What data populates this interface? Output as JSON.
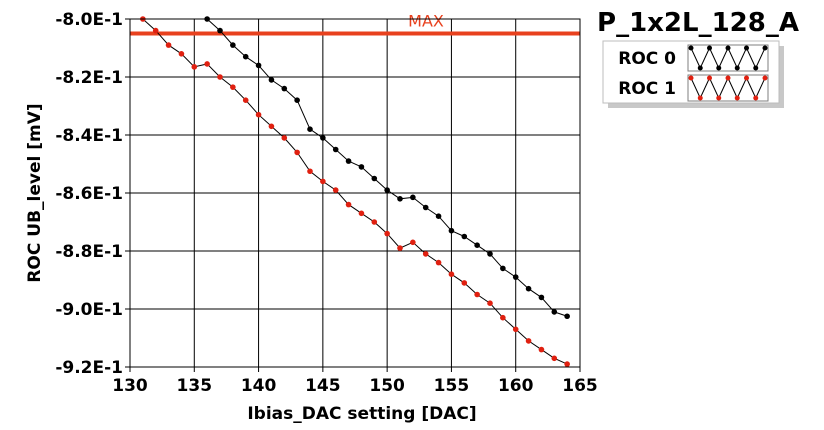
{
  "chart_data": {
    "type": "line",
    "title": "P_1x2L_128_A",
    "xlabel": "Ibias_DAC setting [DAC]",
    "ylabel": "ROC UB_level [mV]",
    "xlim": [
      130,
      165
    ],
    "ylim": [
      -0.92,
      -0.8
    ],
    "x_ticks": [
      130,
      135,
      140,
      145,
      150,
      155,
      160,
      165
    ],
    "x_tick_labels": [
      "130",
      "135",
      "140",
      "145",
      "150",
      "155",
      "160",
      "165"
    ],
    "y_ticks": [
      -0.8,
      -0.82,
      -0.84,
      -0.86,
      -0.88,
      -0.9,
      -0.92
    ],
    "y_tick_labels": [
      "-8.0E-1",
      "-8.2E-1",
      "-8.4E-1",
      "-8.6E-1",
      "-8.8E-1",
      "-9.0E-1",
      "-9.2E-1"
    ],
    "grid": true,
    "legend_position": "top-right",
    "reference_line": {
      "label": "MAX",
      "y": -0.805,
      "color": "#e8411e"
    },
    "series": [
      {
        "name": "ROC 0",
        "color": "#000000",
        "x": [
          136,
          137,
          138,
          139,
          140,
          141,
          142,
          143,
          144,
          145,
          146,
          147,
          148,
          149,
          150,
          151,
          152,
          153,
          154,
          155,
          156,
          157,
          158,
          159,
          160,
          161,
          162,
          163,
          164
        ],
        "y": [
          -0.8,
          -0.804,
          -0.809,
          -0.813,
          -0.816,
          -0.821,
          -0.824,
          -0.828,
          -0.838,
          -0.841,
          -0.845,
          -0.849,
          -0.851,
          -0.855,
          -0.859,
          -0.862,
          -0.8615,
          -0.865,
          -0.868,
          -0.873,
          -0.875,
          -0.878,
          -0.881,
          -0.886,
          -0.889,
          -0.893,
          -0.896,
          -0.901,
          -0.9025
        ]
      },
      {
        "name": "ROC 1",
        "color": "#e02010",
        "x": [
          131,
          132,
          133,
          134,
          135,
          136,
          137,
          138,
          139,
          140,
          141,
          142,
          143,
          144,
          145,
          146,
          147,
          148,
          149,
          150,
          151,
          152,
          153,
          154,
          155,
          156,
          157,
          158,
          159,
          160,
          161,
          162,
          163,
          164
        ],
        "y": [
          -0.8,
          -0.804,
          -0.809,
          -0.812,
          -0.8165,
          -0.8155,
          -0.82,
          -0.8235,
          -0.828,
          -0.833,
          -0.837,
          -0.841,
          -0.846,
          -0.8525,
          -0.856,
          -0.859,
          -0.864,
          -0.867,
          -0.87,
          -0.874,
          -0.879,
          -0.877,
          -0.881,
          -0.884,
          -0.888,
          -0.891,
          -0.895,
          -0.898,
          -0.903,
          -0.907,
          -0.911,
          -0.914,
          -0.917,
          -0.919
        ]
      }
    ]
  }
}
